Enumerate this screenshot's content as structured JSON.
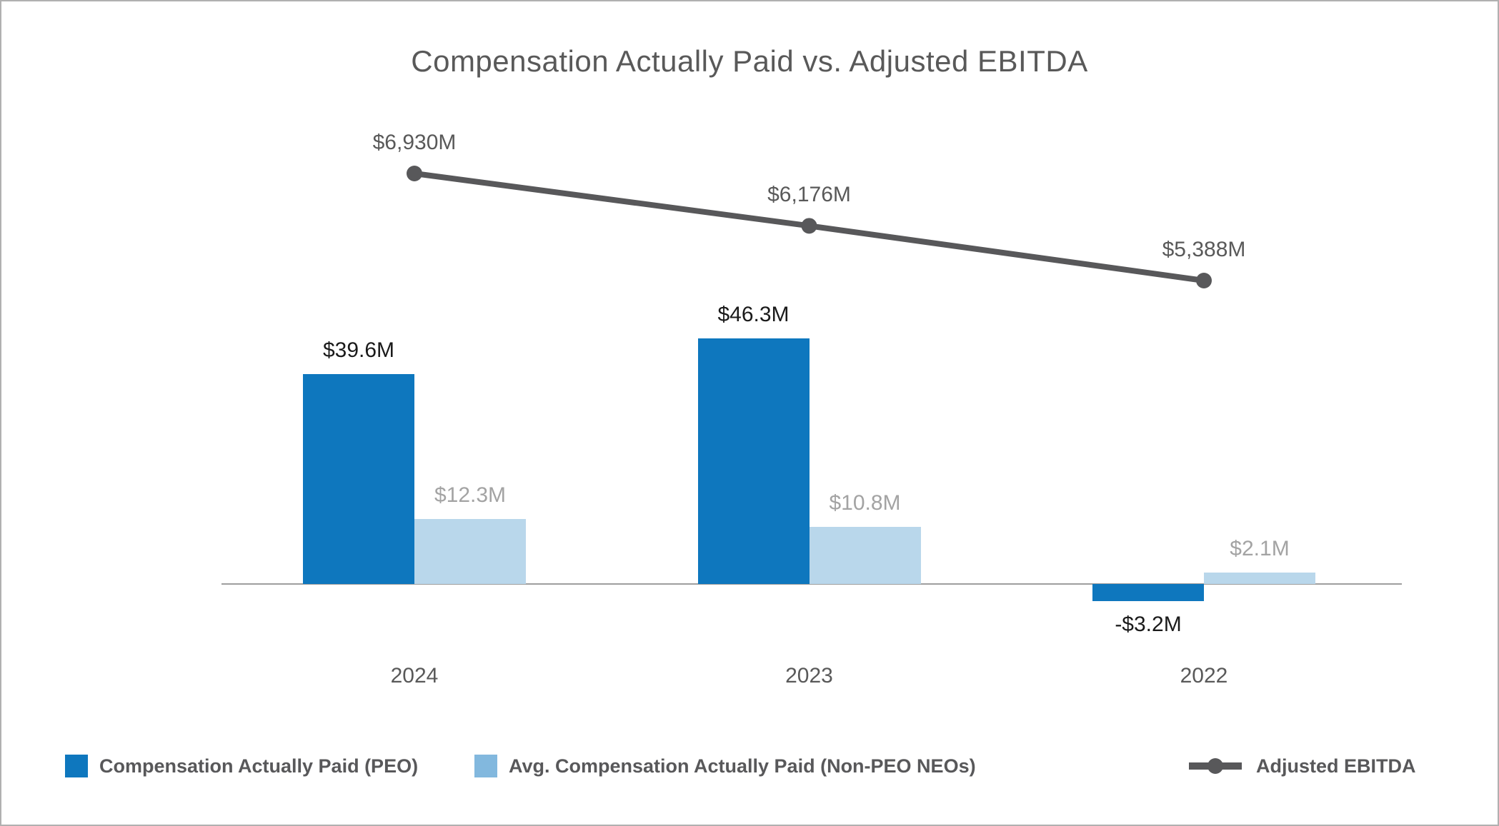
{
  "title": "Compensation Actually Paid vs. Adjusted EBITDA",
  "colors": {
    "peo_bar": "#0e77be",
    "non_peo_bar": "#b9d7eb",
    "non_peo_legend_swatch": "#82b8de",
    "ebitda_line": "#58585a",
    "title_text": "#595959",
    "year_text": "#595959",
    "peo_label_text": "#1a1a1a",
    "non_peo_label_text": "#a3a3a3",
    "line_label_text": "#595959",
    "axis_line": "#9e9e9e"
  },
  "chart_data": [
    {
      "type": "bar",
      "categories": [
        "2024",
        "2023",
        "2022"
      ],
      "series": [
        {
          "name": "Compensation Actually Paid (PEO)",
          "values": [
            39.6,
            46.3,
            -3.2
          ],
          "labels": [
            "$39.6M",
            "$46.3M",
            "-$3.2M"
          ]
        },
        {
          "name": "Avg. Compensation Actually Paid (Non-PEO NEOs)",
          "values": [
            12.3,
            10.8,
            2.1
          ],
          "labels": [
            "$12.3M",
            "$10.8M",
            "$2.1M"
          ]
        }
      ],
      "title": "Compensation Actually Paid vs. Adjusted EBITDA",
      "xlabel": "",
      "ylabel": "",
      "grid": false,
      "value_unit": "$M"
    },
    {
      "type": "line",
      "categories": [
        "2024",
        "2023",
        "2022"
      ],
      "series": [
        {
          "name": "Adjusted EBITDA",
          "values": [
            6930,
            6176,
            5388
          ],
          "labels": [
            "$6,930M",
            "$6,176M",
            "$5,388M"
          ]
        }
      ],
      "grid": false,
      "value_unit": "$M"
    }
  ],
  "legend": {
    "items": [
      {
        "label": "Compensation Actually Paid (PEO)",
        "swatch": "square",
        "color": "#0e77be"
      },
      {
        "label": "Avg. Compensation Actually Paid (Non-PEO NEOs)",
        "swatch": "square",
        "color": "#82b8de"
      },
      {
        "label": "Adjusted EBITDA",
        "swatch": "line-marker",
        "color": "#58585a"
      }
    ],
    "position": "bottom"
  }
}
